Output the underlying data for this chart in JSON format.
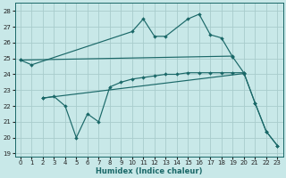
{
  "xlabel": "Humidex (Indice chaleur)",
  "bg_color": "#c8e8e8",
  "grid_color": "#a8cccc",
  "line_color": "#1a6868",
  "xlim": [
    -0.5,
    23.5
  ],
  "ylim": [
    18.8,
    28.5
  ],
  "yticks": [
    19,
    20,
    21,
    22,
    23,
    24,
    25,
    26,
    27,
    28
  ],
  "xticks": [
    0,
    1,
    2,
    3,
    4,
    5,
    6,
    7,
    8,
    9,
    10,
    11,
    12,
    13,
    14,
    15,
    16,
    17,
    18,
    19,
    20,
    21,
    22,
    23
  ],
  "line1_x": [
    0,
    1,
    10,
    11,
    12,
    13,
    15,
    16,
    17,
    18,
    19,
    20,
    21,
    22,
    23
  ],
  "line1_y": [
    24.9,
    24.6,
    26.7,
    27.5,
    26.4,
    26.4,
    27.5,
    27.8,
    26.5,
    26.3,
    25.1,
    24.1,
    22.2,
    20.4,
    19.5
  ],
  "line2_x": [
    0,
    19
  ],
  "line2_y": [
    24.9,
    25.15
  ],
  "line3_x": [
    2,
    20
  ],
  "line3_y": [
    22.5,
    24.05
  ],
  "line4_x": [
    2,
    3,
    4,
    5,
    6,
    7,
    8,
    9,
    10,
    11,
    12,
    13,
    14,
    15,
    16,
    17,
    18,
    19,
    20,
    21,
    22,
    23
  ],
  "line4_y": [
    22.5,
    22.6,
    22.0,
    20.0,
    21.5,
    21.0,
    23.2,
    23.5,
    23.7,
    23.8,
    23.9,
    24.0,
    24.0,
    24.1,
    24.1,
    24.1,
    24.1,
    24.1,
    24.1,
    22.2,
    20.4,
    19.5
  ]
}
